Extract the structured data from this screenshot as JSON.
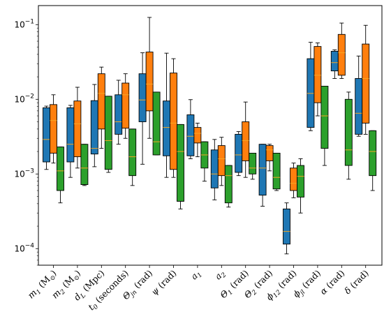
{
  "chart_data": {
    "type": "box",
    "y_scale": "log",
    "ylim": [
      6e-05,
      0.18
    ],
    "y_ticks": [
      {
        "value": 0.1,
        "base": "10",
        "exp": "−1"
      },
      {
        "value": 0.01,
        "base": "10",
        "exp": "−2"
      },
      {
        "value": 0.001,
        "base": "10",
        "exp": "−3"
      },
      {
        "value": 0.0001,
        "base": "10",
        "exp": "−4"
      }
    ],
    "categories": [
      {
        "main": "m",
        "sub": "1",
        "rest": " (M",
        "sun": "⊙",
        "end": ")"
      },
      {
        "main": "m",
        "sub": "2",
        "rest": " (M",
        "sun": "⊙",
        "end": ")"
      },
      {
        "main": "d",
        "sub": "L",
        "rest": " (Mpc)",
        "sun": "",
        "end": ""
      },
      {
        "main": "t",
        "sub": "0",
        "rest": " (seconds)",
        "sun": "",
        "end": ""
      },
      {
        "main": "Θ",
        "sub": "jn",
        "rest": " (rad)",
        "sun": "",
        "end": ""
      },
      {
        "main": "ψ",
        "sub": "",
        "rest": " (rad)",
        "sun": "",
        "end": ""
      },
      {
        "main": "a",
        "sub": "1",
        "rest": "",
        "sun": "",
        "end": ""
      },
      {
        "main": "a",
        "sub": "2",
        "rest": "",
        "sun": "",
        "end": ""
      },
      {
        "main": "Θ",
        "sub": "1",
        "rest": " (rad)",
        "sun": "",
        "end": ""
      },
      {
        "main": "Θ",
        "sub": "2",
        "rest": " (rad)",
        "sun": "",
        "end": ""
      },
      {
        "main": "ϕ",
        "sub": "12",
        "rest": " (rad)",
        "sun": "",
        "end": ""
      },
      {
        "main": "ϕ",
        "sub": "jl",
        "rest": " (rad)",
        "sun": "",
        "end": ""
      },
      {
        "main": "α",
        "sub": "",
        "rest": " (rad)",
        "sun": "",
        "end": ""
      },
      {
        "main": "δ",
        "sub": "",
        "rest": " (rad)",
        "sun": "",
        "end": ""
      }
    ],
    "series": [
      {
        "color": "#1f77b4",
        "boxes": [
          [
            0.00115,
            0.00145,
            0.0029,
            0.0077,
            0.0081
          ],
          [
            0.0009,
            0.00145,
            0.0025,
            0.0077,
            0.0083
          ],
          [
            0.00125,
            0.00185,
            0.0022,
            0.0096,
            0.0158
          ],
          [
            0.0025,
            0.0034,
            0.005,
            0.0115,
            0.018
          ],
          [
            0.00135,
            0.005,
            0.0098,
            0.022,
            0.042
          ],
          [
            0.0009,
            0.00175,
            0.0042,
            0.0095,
            0.0415
          ],
          [
            0.0016,
            0.00175,
            0.0032,
            0.0062,
            0.0099
          ],
          [
            0.00045,
            0.00065,
            0.001,
            0.0021,
            0.0029
          ],
          [
            0.00095,
            0.00105,
            0.0018,
            0.0034,
            0.0037
          ],
          [
            0.00037,
            0.00052,
            0.0012,
            0.0025,
            0.0025
          ],
          [
            8.5e-05,
            0.000115,
            0.00017,
            0.00034,
            0.00041
          ],
          [
            0.0038,
            0.0042,
            0.012,
            0.035,
            0.058
          ],
          [
            0.019,
            0.024,
            0.031,
            0.044,
            0.046
          ],
          [
            0.0032,
            0.0034,
            0.0065,
            0.019,
            0.038
          ]
        ]
      },
      {
        "color": "#ff7f0e",
        "boxes": [
          [
            0.0014,
            0.0019,
            0.0052,
            0.0085,
            0.0115
          ],
          [
            0.0012,
            0.0017,
            0.0047,
            0.0095,
            0.0145
          ],
          [
            0.0022,
            0.004,
            0.012,
            0.022,
            0.027
          ],
          [
            0.003,
            0.0041,
            0.0115,
            0.0165,
            0.022
          ],
          [
            0.003,
            0.007,
            0.016,
            0.043,
            0.125
          ],
          [
            0.0009,
            0.00115,
            0.0048,
            0.0225,
            0.035
          ],
          [
            0.0017,
            0.0026,
            0.0035,
            0.0042,
            0.0048
          ],
          [
            0.0007,
            0.00095,
            0.0016,
            0.0024,
            0.0031
          ],
          [
            0.0009,
            0.0015,
            0.0028,
            0.005,
            0.0092
          ],
          [
            0.0011,
            0.0015,
            0.0021,
            0.0024,
            0.0025
          ],
          [
            0.00048,
            0.0006,
            0.00075,
            0.0012,
            0.0014
          ],
          [
            0.006,
            0.009,
            0.021,
            0.051,
            0.057
          ],
          [
            0.019,
            0.021,
            0.042,
            0.074,
            0.105
          ],
          [
            0.0034,
            0.0048,
            0.019,
            0.055,
            0.098
          ]
        ]
      },
      {
        "color": "#2ca02c",
        "boxes": [
          [
            0.00041,
            0.0006,
            0.0011,
            0.0023,
            0.0023
          ],
          [
            0.0007,
            0.00072,
            0.0012,
            0.0025,
            0.0025
          ],
          [
            0.00105,
            0.00115,
            0.0028,
            0.011,
            0.011
          ],
          [
            0.0007,
            0.00095,
            0.0017,
            0.004,
            0.004
          ],
          [
            0.0018,
            0.0018,
            0.0027,
            0.0125,
            0.0125
          ],
          [
            0.00034,
            0.00043,
            0.002,
            0.0046,
            0.0046
          ],
          [
            0.0008,
            0.0012,
            0.0018,
            0.0027,
            0.0027
          ],
          [
            0.00036,
            0.00041,
            0.00095,
            0.0013,
            0.0013
          ],
          [
            0.00085,
            0.001,
            0.0012,
            0.0019,
            0.0019
          ],
          [
            0.0006,
            0.00063,
            0.0009,
            0.0019,
            0.0019
          ],
          [
            0.0003,
            0.00049,
            0.00093,
            0.0013,
            0.0016
          ],
          [
            0.0013,
            0.0022,
            0.006,
            0.015,
            0.015
          ],
          [
            0.00085,
            0.0013,
            0.0021,
            0.01,
            0.0125
          ],
          [
            0.0006,
            0.00095,
            0.002,
            0.0038,
            0.0038
          ]
        ]
      }
    ]
  }
}
